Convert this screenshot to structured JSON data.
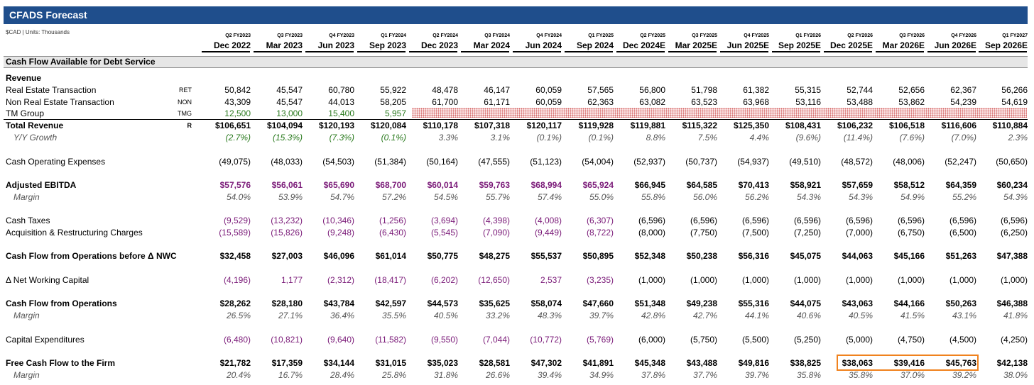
{
  "title": "CFADS Forecast",
  "units": "$CAD | Units: Thousands",
  "section_title": "Cash Flow Available for Debt Service",
  "periods": [
    {
      "fy": "Q2 FY2023",
      "date": "Dec 2022"
    },
    {
      "fy": "Q3 FY2023",
      "date": "Mar 2023"
    },
    {
      "fy": "Q4 FY2023",
      "date": "Jun 2023"
    },
    {
      "fy": "Q1 FY2024",
      "date": "Sep 2023"
    },
    {
      "fy": "Q2 FY2024",
      "date": "Dec 2023"
    },
    {
      "fy": "Q3 FY2024",
      "date": "Mar 2024"
    },
    {
      "fy": "Q4 FY2024",
      "date": "Jun 2024"
    },
    {
      "fy": "Q1 FY2025",
      "date": "Sep 2024"
    },
    {
      "fy": "Q2 FY2025",
      "date": "Dec 2024E"
    },
    {
      "fy": "Q3 FY2025",
      "date": "Mar 2025E"
    },
    {
      "fy": "Q4 FY2025",
      "date": "Jun 2025E"
    },
    {
      "fy": "Q1 FY2026",
      "date": "Sep 2025E"
    },
    {
      "fy": "Q2 FY2026",
      "date": "Dec 2025E"
    },
    {
      "fy": "Q3 FY2026",
      "date": "Mar 2026E"
    },
    {
      "fy": "Q4 FY2026",
      "date": "Jun 2026E"
    },
    {
      "fy": "Q1 FY2027",
      "date": "Sep 2026E"
    }
  ],
  "rows": [
    {
      "label": "Revenue",
      "code": "",
      "style": "bold",
      "values": []
    },
    {
      "label": "Real Estate Transaction",
      "code": "RET",
      "style": "normal",
      "values": [
        "50,842",
        "45,547",
        "60,780",
        "55,922",
        "48,478",
        "46,147",
        "60,059",
        "57,565",
        "56,800",
        "51,798",
        "61,382",
        "55,315",
        "52,744",
        "52,656",
        "62,367",
        "56,266"
      ]
    },
    {
      "label": "Non Real Estate Transaction",
      "code": "NON",
      "style": "normal",
      "values": [
        "43,309",
        "45,547",
        "44,013",
        "58,205",
        "61,700",
        "61,171",
        "60,059",
        "62,363",
        "63,082",
        "63,523",
        "63,968",
        "53,116",
        "53,488",
        "53,862",
        "54,239",
        "54,619"
      ]
    },
    {
      "label": "TM Group",
      "code": "TMG",
      "style": "green",
      "values": [
        "12,500",
        "13,000",
        "15,400",
        "5,957",
        "",
        "",
        "",
        "",
        "",
        "",
        "",
        "",
        "",
        "",
        "",
        ""
      ]
    },
    {
      "label": "Total Revenue",
      "code": "R",
      "style": "bold",
      "values": [
        "$106,651",
        "$104,094",
        "$120,193",
        "$120,084",
        "$110,178",
        "$107,318",
        "$120,117",
        "$119,928",
        "$119,881",
        "$115,322",
        "$125,350",
        "$108,431",
        "$106,232",
        "$106,518",
        "$116,606",
        "$110,884"
      ]
    },
    {
      "label": "Y/Y Growth",
      "code": "",
      "style": "growth",
      "values": [
        "(2.7%)",
        "(15.3%)",
        "(7.3%)",
        "(0.1%)",
        "3.3%",
        "3.1%",
        "(0.1%)",
        "(0.1%)",
        "8.8%",
        "7.5%",
        "4.4%",
        "(9.6%)",
        "(11.4%)",
        "(7.6%)",
        "(7.0%)",
        "2.3%"
      ]
    },
    {
      "label": "",
      "code": "",
      "style": "spacer",
      "values": []
    },
    {
      "label": "Cash Operating Expenses",
      "code": "",
      "style": "normal",
      "values": [
        "(49,075)",
        "(48,033)",
        "(54,503)",
        "(51,384)",
        "(50,164)",
        "(47,555)",
        "(51,123)",
        "(54,004)",
        "(52,937)",
        "(50,737)",
        "(54,937)",
        "(49,510)",
        "(48,572)",
        "(48,006)",
        "(52,247)",
        "(50,650)"
      ]
    },
    {
      "label": "",
      "code": "",
      "style": "spacer",
      "values": []
    },
    {
      "label": "Adjusted EBITDA",
      "code": "",
      "style": "bold-purple",
      "values": [
        "$57,576",
        "$56,061",
        "$65,690",
        "$68,700",
        "$60,014",
        "$59,763",
        "$68,994",
        "$65,924",
        "$66,945",
        "$64,585",
        "$70,413",
        "$58,921",
        "$57,659",
        "$58,512",
        "$64,359",
        "$60,234"
      ]
    },
    {
      "label": "Margin",
      "code": "",
      "style": "italic",
      "values": [
        "54.0%",
        "53.9%",
        "54.7%",
        "57.2%",
        "54.5%",
        "55.7%",
        "57.4%",
        "55.0%",
        "55.8%",
        "56.0%",
        "56.2%",
        "54.3%",
        "54.3%",
        "54.9%",
        "55.2%",
        "54.3%"
      ]
    },
    {
      "label": "",
      "code": "",
      "style": "spacer",
      "values": []
    },
    {
      "label": "Cash Taxes",
      "code": "",
      "style": "purple",
      "values": [
        "(9,529)",
        "(13,232)",
        "(10,346)",
        "(1,256)",
        "(3,694)",
        "(4,398)",
        "(4,008)",
        "(6,307)",
        "(6,596)",
        "(6,596)",
        "(6,596)",
        "(6,596)",
        "(6,596)",
        "(6,596)",
        "(6,596)",
        "(6,596)"
      ]
    },
    {
      "label": "Acquisition & Restructuring Charges",
      "code": "",
      "style": "purple",
      "values": [
        "(15,589)",
        "(15,826)",
        "(9,248)",
        "(6,430)",
        "(5,545)",
        "(7,090)",
        "(9,449)",
        "(8,722)",
        "(8,000)",
        "(7,750)",
        "(7,500)",
        "(7,250)",
        "(7,000)",
        "(6,750)",
        "(6,500)",
        "(6,250)"
      ]
    },
    {
      "label": "",
      "code": "",
      "style": "spacer",
      "values": []
    },
    {
      "label": "Cash Flow from Operations before Δ NWC",
      "code": "",
      "style": "bold",
      "values": [
        "$32,458",
        "$27,003",
        "$46,096",
        "$61,014",
        "$50,775",
        "$48,275",
        "$55,537",
        "$50,895",
        "$52,348",
        "$50,238",
        "$56,316",
        "$45,075",
        "$44,063",
        "$45,166",
        "$51,263",
        "$47,388"
      ]
    },
    {
      "label": "",
      "code": "",
      "style": "spacer",
      "values": []
    },
    {
      "label": "Δ Net Working Capital",
      "code": "",
      "style": "purple",
      "values": [
        "(4,196)",
        "1,177",
        "(2,312)",
        "(18,417)",
        "(6,202)",
        "(12,650)",
        "2,537",
        "(3,235)",
        "(1,000)",
        "(1,000)",
        "(1,000)",
        "(1,000)",
        "(1,000)",
        "(1,000)",
        "(1,000)",
        "(1,000)"
      ]
    },
    {
      "label": "",
      "code": "",
      "style": "spacer",
      "values": []
    },
    {
      "label": "Cash Flow from Operations",
      "code": "",
      "style": "bold",
      "values": [
        "$28,262",
        "$28,180",
        "$43,784",
        "$42,597",
        "$44,573",
        "$35,625",
        "$58,074",
        "$47,660",
        "$51,348",
        "$49,238",
        "$55,316",
        "$44,075",
        "$43,063",
        "$44,166",
        "$50,263",
        "$46,388"
      ]
    },
    {
      "label": "Margin",
      "code": "",
      "style": "italic",
      "values": [
        "26.5%",
        "27.1%",
        "36.4%",
        "35.5%",
        "40.5%",
        "33.2%",
        "48.3%",
        "39.7%",
        "42.8%",
        "42.7%",
        "44.1%",
        "40.6%",
        "40.5%",
        "41.5%",
        "43.1%",
        "41.8%"
      ]
    },
    {
      "label": "",
      "code": "",
      "style": "spacer",
      "values": []
    },
    {
      "label": "Capital Expenditures",
      "code": "",
      "style": "purple",
      "values": [
        "(6,480)",
        "(10,821)",
        "(9,640)",
        "(11,582)",
        "(9,550)",
        "(7,044)",
        "(10,772)",
        "(5,769)",
        "(6,000)",
        "(5,750)",
        "(5,500)",
        "(5,250)",
        "(5,000)",
        "(4,750)",
        "(4,500)",
        "(4,250)"
      ]
    },
    {
      "label": "",
      "code": "",
      "style": "spacer",
      "values": []
    },
    {
      "label": "Free Cash Flow to the Firm",
      "code": "",
      "style": "bold",
      "values": [
        "$21,782",
        "$17,359",
        "$34,144",
        "$31,015",
        "$35,023",
        "$28,581",
        "$47,302",
        "$41,891",
        "$45,348",
        "$43,488",
        "$49,816",
        "$38,825",
        "$38,063",
        "$39,416",
        "$45,763",
        "$42,138"
      ]
    },
    {
      "label": "Margin",
      "code": "",
      "style": "italic",
      "values": [
        "20.4%",
        "16.7%",
        "28.4%",
        "25.8%",
        "31.8%",
        "26.6%",
        "39.4%",
        "34.9%",
        "37.8%",
        "37.7%",
        "39.7%",
        "35.8%",
        "35.8%",
        "37.0%",
        "39.2%",
        "38.0%"
      ]
    }
  ],
  "colors": {
    "title_bg": "#1f4e8c",
    "purple": "#7a1a78",
    "green": "#2a7a1e",
    "highlight": "#f0821e",
    "hatch": "#d25a5a"
  }
}
